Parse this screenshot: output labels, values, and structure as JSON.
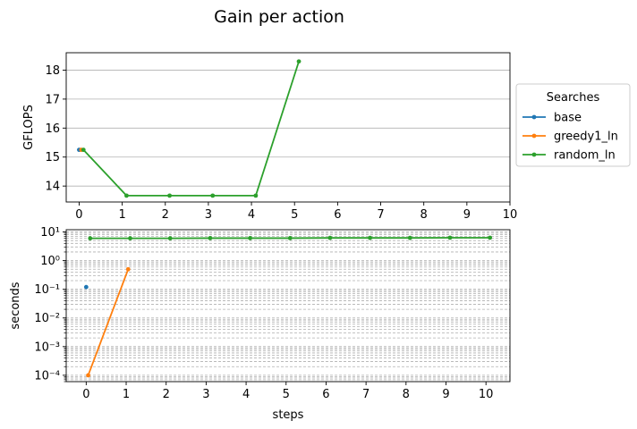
{
  "figure": {
    "title": "Gain per action"
  },
  "legend": {
    "title": "Searches",
    "placement": "right-of-top-chart"
  },
  "chart_data": [
    {
      "type": "line",
      "ylabel": "GFLOPS",
      "xlabel": "",
      "xlim": [
        -0.3,
        10
      ],
      "ylim": [
        13.45,
        18.6
      ],
      "x_ticks": [
        0,
        1,
        2,
        3,
        4,
        5,
        6,
        7,
        8,
        9,
        10
      ],
      "y_ticks": [
        14,
        15,
        16,
        17,
        18
      ],
      "grid": "horizontal major",
      "series": [
        {
          "name": "base",
          "color": "#1f77b4",
          "x": [
            0
          ],
          "y": [
            15.25
          ]
        },
        {
          "name": "greedy1_ln",
          "color": "#ff7f0e",
          "x": [
            0.05
          ],
          "y": [
            15.25
          ]
        },
        {
          "name": "random_ln",
          "color": "#2ca02c",
          "x": [
            0.1,
            1.1,
            2.1,
            3.1,
            4.1,
            5.1
          ],
          "y": [
            15.25,
            13.67,
            13.67,
            13.67,
            13.67,
            18.3
          ]
        }
      ]
    },
    {
      "type": "line",
      "ylabel": "seconds",
      "xlabel": "steps",
      "xlim": [
        -0.5,
        10.6
      ],
      "ylim": [
        6e-05,
        12
      ],
      "yscale": "log",
      "x_ticks": [
        0,
        1,
        2,
        3,
        4,
        5,
        6,
        7,
        8,
        9,
        10
      ],
      "y_ticks": [
        0.0001,
        0.001,
        0.01,
        0.1,
        1,
        10
      ],
      "grid": "horizontal major and minor",
      "series": [
        {
          "name": "base",
          "color": "#1f77b4",
          "x": [
            0
          ],
          "y": [
            0.12
          ]
        },
        {
          "name": "greedy1_ln",
          "color": "#ff7f0e",
          "x": [
            0.05,
            1.05
          ],
          "y": [
            0.0001,
            0.5
          ]
        },
        {
          "name": "random_ln",
          "color": "#2ca02c",
          "x": [
            0.1,
            1.1,
            2.1,
            3.1,
            4.1,
            5.1,
            6.1,
            7.1,
            8.1,
            9.1,
            10.1
          ],
          "y": [
            6.0,
            6.0,
            6.0,
            6.1,
            6.1,
            6.1,
            6.2,
            6.2,
            6.2,
            6.3,
            6.3
          ]
        }
      ]
    }
  ]
}
